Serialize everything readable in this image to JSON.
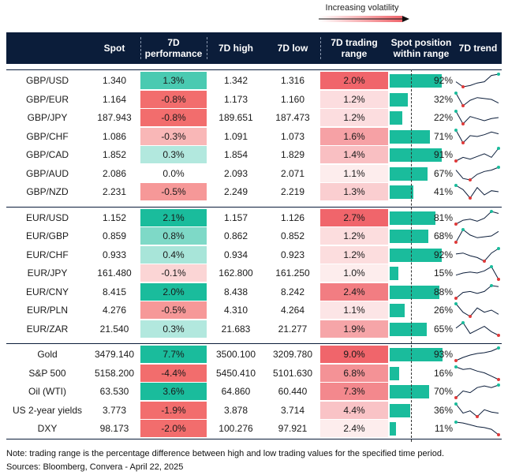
{
  "legend": {
    "volatility_label": "Increasing volatility"
  },
  "headers": {
    "spot": "Spot",
    "performance": "7D\nperformance",
    "high": "7D high",
    "low": "7D low",
    "range": "7D trading\nrange",
    "position": "Spot position\nwithin range",
    "trend": "7D trend"
  },
  "footer": {
    "note": "Note: trading range is the percentage difference between high and low trading values for the specified time period.",
    "sources": "Sources: Bloomberg, Convera - April 22, 2025"
  },
  "chart_data": {
    "type": "table",
    "columns": [
      "",
      "Spot",
      "7D performance",
      "7D high",
      "7D low",
      "7D trading range",
      "Spot position within range",
      "7D trend"
    ],
    "groups": [
      {
        "rows": [
          {
            "name": "GBP/USD",
            "spot": "1.340",
            "perf": "1.3%",
            "high": "1.342",
            "low": "1.316",
            "range": "2.0%",
            "position": "92%",
            "trend": [
              2.0,
              1.6,
              1.7,
              1.9,
              2.0,
              2.5,
              2.6
            ]
          },
          {
            "name": "GBP/EUR",
            "spot": "1.164",
            "perf": "-0.8%",
            "high": "1.173",
            "low": "1.160",
            "range": "1.2%",
            "position": "32%",
            "trend": [
              2.4,
              1.0,
              1.6,
              1.9,
              1.8,
              1.7,
              1.3
            ]
          },
          {
            "name": "GBP/JPY",
            "spot": "187.943",
            "perf": "-0.8%",
            "high": "189.651",
            "low": "187.473",
            "range": "1.2%",
            "position": "22%",
            "trend": [
              2.2,
              1.0,
              1.7,
              1.5,
              1.3,
              1.5,
              1.6
            ]
          },
          {
            "name": "GBP/CHF",
            "spot": "1.086",
            "perf": "-0.3%",
            "high": "1.091",
            "low": "1.073",
            "range": "1.6%",
            "position": "71%",
            "trend": [
              2.4,
              1.0,
              1.8,
              1.7,
              1.9,
              2.2,
              2.0
            ]
          },
          {
            "name": "GBP/CAD",
            "spot": "1.852",
            "perf": "0.3%",
            "high": "1.854",
            "low": "1.829",
            "range": "1.4%",
            "position": "91%",
            "trend": [
              1.2,
              1.6,
              1.4,
              1.7,
              2.0,
              1.6,
              2.6
            ]
          },
          {
            "name": "GBP/AUD",
            "spot": "2.086",
            "perf": "0.0%",
            "high": "2.093",
            "low": "2.071",
            "range": "1.1%",
            "position": "67%",
            "trend": [
              2.2,
              1.6,
              1.5,
              1.9,
              2.1,
              2.2,
              2.4
            ]
          },
          {
            "name": "GBP/NZD",
            "spot": "2.231",
            "perf": "-0.5%",
            "high": "2.249",
            "low": "2.219",
            "range": "1.3%",
            "position": "41%",
            "trend": [
              2.2,
              1.8,
              1.0,
              2.0,
              1.3,
              1.7,
              1.6
            ]
          }
        ]
      },
      {
        "rows": [
          {
            "name": "EUR/USD",
            "spot": "1.152",
            "perf": "2.1%",
            "high": "1.157",
            "low": "1.126",
            "range": "2.7%",
            "position": "81%",
            "trend": [
              1.3,
              1.7,
              1.8,
              1.6,
              1.9,
              2.6,
              2.4
            ]
          },
          {
            "name": "EUR/GBP",
            "spot": "0.859",
            "perf": "0.8%",
            "high": "0.862",
            "low": "0.852",
            "range": "1.2%",
            "position": "68%",
            "trend": [
              1.0,
              2.4,
              1.8,
              1.5,
              1.6,
              1.7,
              2.2
            ]
          },
          {
            "name": "EUR/CHF",
            "spot": "0.933",
            "perf": "0.4%",
            "high": "0.934",
            "low": "0.923",
            "range": "1.2%",
            "position": "92%",
            "trend": [
              1.8,
              1.9,
              1.6,
              1.4,
              1.0,
              1.9,
              2.4
            ]
          },
          {
            "name": "EUR/JPY",
            "spot": "161.480",
            "perf": "-0.1%",
            "high": "162.800",
            "low": "161.250",
            "range": "1.0%",
            "position": "15%",
            "trend": [
              1.6,
              1.8,
              1.9,
              1.8,
              2.0,
              2.4,
              1.2
            ]
          },
          {
            "name": "EUR/CNY",
            "spot": "8.415",
            "perf": "2.0%",
            "high": "8.438",
            "low": "8.242",
            "range": "2.4%",
            "position": "88%",
            "trend": [
              1.2,
              1.8,
              1.9,
              1.7,
              1.9,
              2.5,
              2.4
            ]
          },
          {
            "name": "EUR/PLN",
            "spot": "4.276",
            "perf": "-0.5%",
            "high": "4.310",
            "low": "4.264",
            "range": "1.1%",
            "position": "26%",
            "trend": [
              2.0,
              1.6,
              1.4,
              1.8,
              1.6,
              1.7,
              1.5
            ]
          },
          {
            "name": "EUR/ZAR",
            "spot": "21.540",
            "perf": "0.3%",
            "high": "21.683",
            "low": "21.277",
            "range": "1.9%",
            "position": "65%",
            "trend": [
              1.8,
              2.1,
              1.5,
              1.7,
              1.9,
              1.6,
              1.4
            ]
          }
        ]
      },
      {
        "rows": [
          {
            "name": "Gold",
            "spot": "3479.140",
            "perf": "7.7%",
            "high": "3500.100",
            "low": "3209.780",
            "range": "9.0%",
            "position": "93%",
            "trend": [
              1.0,
              1.4,
              1.7,
              1.9,
              2.0,
              2.2,
              2.6
            ]
          },
          {
            "name": "S&P 500",
            "spot": "5158.200",
            "perf": "-4.4%",
            "high": "5450.410",
            "low": "5101.630",
            "range": "6.8%",
            "position": "16%",
            "trend": [
              2.5,
              2.2,
              2.3,
              2.0,
              1.8,
              1.4,
              1.0
            ]
          },
          {
            "name": "Oil (WTI)",
            "spot": "63.530",
            "perf": "3.6%",
            "high": "64.860",
            "low": "60.440",
            "range": "7.3%",
            "position": "70%",
            "trend": [
              1.0,
              1.8,
              1.6,
              2.2,
              2.4,
              2.2,
              2.5
            ]
          },
          {
            "name": "US 2-year yields",
            "spot": "3.773",
            "perf": "-1.9%",
            "high": "3.878",
            "low": "3.714",
            "range": "4.4%",
            "position": "36%",
            "trend": [
              2.4,
              1.6,
              1.8,
              1.3,
              1.9,
              1.7,
              1.6
            ]
          },
          {
            "name": "DXY",
            "spot": "98.173",
            "perf": "-2.0%",
            "high": "100.276",
            "low": "97.921",
            "range": "2.4%",
            "position": "11%",
            "trend": [
              2.5,
              2.4,
              2.2,
              2.0,
              1.9,
              1.7,
              1.1
            ]
          }
        ]
      }
    ],
    "colors": {
      "header_bg": "#0b1d3a",
      "positive": "#1abc9c",
      "negative": "#f26d6d",
      "range_high": "#f0656b",
      "range_low": "#ffffff",
      "trend_line": "#0b1d3a",
      "trend_max": "#1abc9c",
      "trend_min": "#e03a3a"
    }
  }
}
